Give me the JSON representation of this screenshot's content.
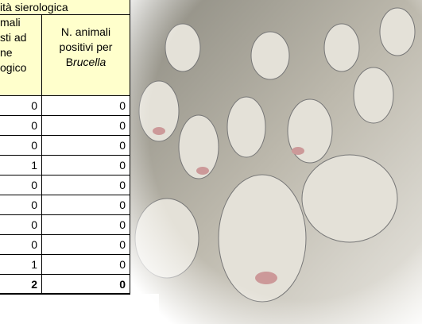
{
  "table": {
    "caption": "ità sierologica",
    "headers": [
      [
        "mali",
        "sti ad",
        "ne",
        "ogico"
      ],
      [
        "N. animali",
        "positivi per",
        "B",
        "rucella"
      ]
    ],
    "rows": [
      [
        0,
        0
      ],
      [
        0,
        0
      ],
      [
        0,
        0
      ],
      [
        1,
        0
      ],
      [
        0,
        0
      ],
      [
        0,
        0
      ],
      [
        0,
        0
      ],
      [
        0,
        0
      ],
      [
        1,
        0
      ]
    ],
    "total": [
      2,
      0
    ]
  }
}
